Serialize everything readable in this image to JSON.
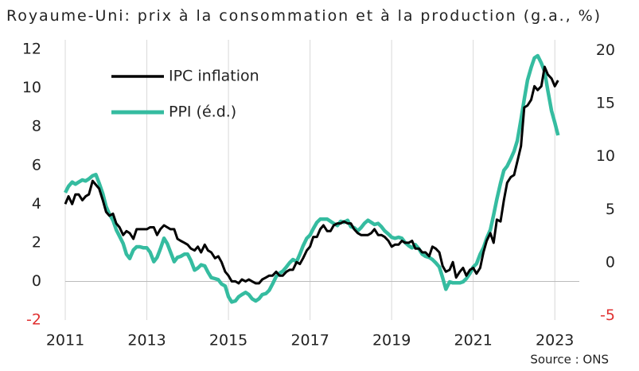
{
  "chart_data": {
    "type": "line",
    "title": "Royaume-Uni:  prix à la consommation et à la production (g.a., %)",
    "source": "Source : ONS",
    "x": [
      2011,
      2011.08,
      2011.17,
      2011.25,
      2011.33,
      2011.42,
      2011.5,
      2011.58,
      2011.67,
      2011.75,
      2011.83,
      2011.92,
      2012,
      2012.08,
      2012.17,
      2012.25,
      2012.33,
      2012.42,
      2012.5,
      2012.58,
      2012.67,
      2012.75,
      2012.83,
      2012.92,
      2013,
      2013.08,
      2013.17,
      2013.25,
      2013.33,
      2013.42,
      2013.5,
      2013.58,
      2013.67,
      2013.75,
      2013.83,
      2013.92,
      2014,
      2014.08,
      2014.17,
      2014.25,
      2014.33,
      2014.42,
      2014.5,
      2014.58,
      2014.67,
      2014.75,
      2014.83,
      2014.92,
      2015,
      2015.08,
      2015.17,
      2015.25,
      2015.33,
      2015.42,
      2015.5,
      2015.58,
      2015.67,
      2015.75,
      2015.83,
      2015.92,
      2016,
      2016.08,
      2016.17,
      2016.25,
      2016.33,
      2016.42,
      2016.5,
      2016.58,
      2016.67,
      2016.75,
      2016.83,
      2016.92,
      2017,
      2017.08,
      2017.17,
      2017.25,
      2017.33,
      2017.42,
      2017.5,
      2017.58,
      2017.67,
      2017.75,
      2017.83,
      2017.92,
      2018,
      2018.08,
      2018.17,
      2018.25,
      2018.33,
      2018.42,
      2018.5,
      2018.58,
      2018.67,
      2018.75,
      2018.83,
      2018.92,
      2019,
      2019.08,
      2019.17,
      2019.25,
      2019.33,
      2019.42,
      2019.5,
      2019.58,
      2019.67,
      2019.75,
      2019.83,
      2019.92,
      2020,
      2020.08,
      2020.17,
      2020.25,
      2020.33,
      2020.42,
      2020.5,
      2020.58,
      2020.67,
      2020.75,
      2020.83,
      2020.92,
      2021,
      2021.08,
      2021.17,
      2021.25,
      2021.33,
      2021.42,
      2021.5,
      2021.58,
      2021.67,
      2021.75,
      2021.83,
      2021.92,
      2022,
      2022.08,
      2022.17,
      2022.25,
      2022.33,
      2022.42,
      2022.5,
      2022.58,
      2022.67,
      2022.75,
      2022.83,
      2022.92,
      2023,
      2023.08
    ],
    "series": [
      {
        "name": "IPC inflation",
        "color": "#000000",
        "values": [
          4.0,
          4.4,
          4.0,
          4.5,
          4.5,
          4.2,
          4.4,
          4.5,
          5.2,
          5.0,
          4.8,
          4.2,
          3.6,
          3.4,
          3.5,
          3.0,
          2.8,
          2.4,
          2.6,
          2.5,
          2.2,
          2.7,
          2.7,
          2.7,
          2.7,
          2.8,
          2.8,
          2.4,
          2.7,
          2.9,
          2.8,
          2.7,
          2.7,
          2.2,
          2.1,
          2.0,
          1.9,
          1.7,
          1.6,
          1.8,
          1.5,
          1.9,
          1.6,
          1.5,
          1.2,
          1.3,
          1.0,
          0.5,
          0.3,
          0.0,
          0.0,
          -0.1,
          0.1,
          0.0,
          0.1,
          0.0,
          -0.1,
          -0.1,
          0.1,
          0.2,
          0.3,
          0.3,
          0.5,
          0.3,
          0.3,
          0.5,
          0.6,
          0.6,
          1.0,
          0.9,
          1.2,
          1.6,
          1.8,
          2.3,
          2.3,
          2.7,
          2.9,
          2.6,
          2.6,
          2.9,
          3.0,
          3.0,
          3.1,
          3.0,
          3.0,
          2.7,
          2.5,
          2.4,
          2.4,
          2.4,
          2.5,
          2.7,
          2.4,
          2.4,
          2.3,
          2.1,
          1.8,
          1.9,
          1.9,
          2.1,
          2.0,
          2.0,
          2.1,
          1.7,
          1.7,
          1.5,
          1.5,
          1.3,
          1.8,
          1.7,
          1.5,
          0.8,
          0.5,
          0.6,
          1.0,
          0.2,
          0.5,
          0.7,
          0.3,
          0.6,
          0.7,
          0.4,
          0.7,
          1.5,
          2.1,
          2.5,
          2.0,
          3.2,
          3.1,
          4.2,
          5.1,
          5.4,
          5.5,
          6.2,
          7.0,
          9.0,
          9.1,
          9.4,
          10.1,
          9.9,
          10.1,
          11.1,
          10.7,
          10.5,
          10.1,
          10.4
        ]
      },
      {
        "name": "PPI (é.d.)",
        "color": "#35bca0",
        "axis": "y2",
        "values": [
          6.6,
          7.2,
          7.6,
          7.4,
          7.6,
          7.8,
          7.7,
          7.9,
          8.2,
          8.3,
          7.5,
          6.5,
          5.3,
          4.6,
          4.0,
          3.1,
          2.5,
          1.8,
          0.8,
          0.4,
          1.2,
          1.5,
          1.5,
          1.4,
          1.4,
          1.0,
          0.1,
          0.5,
          1.3,
          2.3,
          1.8,
          1.0,
          0.1,
          0.5,
          0.6,
          0.8,
          0.8,
          0.2,
          -0.7,
          -0.5,
          -0.2,
          -0.3,
          -0.9,
          -1.4,
          -1.5,
          -1.6,
          -2.0,
          -2.2,
          -3.2,
          -3.7,
          -3.6,
          -3.2,
          -3.0,
          -2.8,
          -3.0,
          -3.4,
          -3.6,
          -3.4,
          -3.0,
          -2.9,
          -2.6,
          -2.0,
          -1.3,
          -1.0,
          -0.8,
          -0.4,
          0.0,
          0.3,
          0.1,
          0.8,
          1.6,
          2.3,
          2.6,
          3.2,
          3.8,
          4.1,
          4.1,
          4.1,
          3.9,
          3.7,
          3.5,
          3.9,
          3.8,
          4.0,
          3.4,
          3.3,
          3.0,
          3.3,
          3.7,
          4.0,
          3.8,
          3.6,
          3.7,
          3.4,
          3.0,
          2.7,
          2.4,
          2.3,
          2.4,
          2.3,
          1.9,
          1.6,
          1.4,
          1.7,
          1.3,
          0.8,
          0.6,
          0.5,
          0.3,
          0.0,
          -0.4,
          -1.4,
          -2.5,
          -1.8,
          -1.9,
          -1.9,
          -1.9,
          -1.8,
          -1.5,
          -1.0,
          -0.4,
          -0.1,
          0.8,
          1.4,
          2.3,
          3.1,
          4.5,
          6.0,
          7.5,
          8.7,
          9.1,
          9.8,
          10.5,
          11.5,
          13.5,
          15.4,
          17.2,
          18.4,
          19.3,
          19.5,
          18.8,
          18.0,
          16.2,
          14.3,
          13.2,
          12.0
        ]
      }
    ],
    "xlim": [
      2011,
      2023.6
    ],
    "xticks": [
      2011,
      2013,
      2015,
      2017,
      2019,
      2021,
      2023
    ],
    "ylim": [
      -2,
      12.5
    ],
    "yticks": [
      -2,
      0,
      2,
      4,
      6,
      8,
      10,
      12
    ],
    "y2lim": [
      -5.4,
      21
    ],
    "y2ticks": [
      -5,
      0,
      5,
      10,
      15,
      20
    ],
    "negative_tick_color": "#e03030",
    "legend": "upper left",
    "grid": true
  }
}
